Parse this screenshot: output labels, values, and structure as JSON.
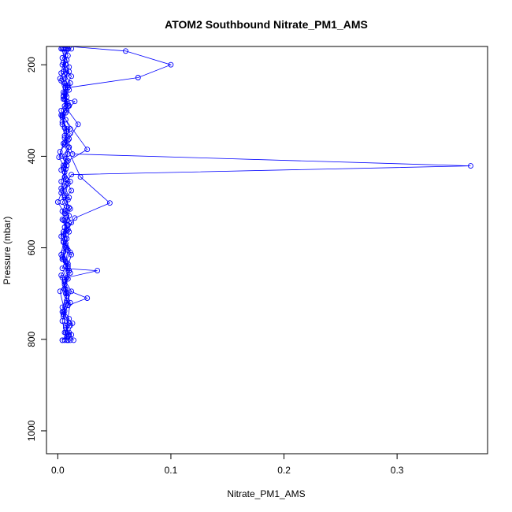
{
  "chart_data": {
    "type": "line",
    "title": "ATOM2 Southbound Nitrate_PM1_AMS",
    "xlabel": "Nitrate_PM1_AMS",
    "ylabel": "Pressure (mbar)",
    "xlim": [
      -0.01,
      0.38
    ],
    "ylim": [
      1050,
      160
    ],
    "y_reversed": true,
    "x_ticks": [
      0.0,
      0.1,
      0.2,
      0.3
    ],
    "x_tick_labels": [
      "0.0",
      "0.1",
      "0.2",
      "0.3"
    ],
    "y_ticks": [
      200,
      400,
      600,
      800,
      1000
    ],
    "y_tick_labels": [
      "200",
      "400",
      "600",
      "800",
      "1000"
    ],
    "grid": false,
    "legend": "none",
    "series_color": "#0000ff",
    "marker": "open-circle",
    "highlights": [
      {
        "x": 0.1,
        "y": 200
      },
      {
        "x": 0.071,
        "y": 228
      },
      {
        "x": 0.365,
        "y": 421
      },
      {
        "x": 0.046,
        "y": 502
      },
      {
        "x": 0.035,
        "y": 650
      },
      {
        "x": 0.026,
        "y": 726
      },
      {
        "x": 0.026,
        "y": 385
      },
      {
        "x": 0.02,
        "y": 802
      }
    ],
    "series": [
      {
        "x": [
          0.012,
          0.004,
          0.007,
          0.01,
          0.006,
          0.009,
          0.005,
          0.008,
          0.003,
          0.007,
          0.011,
          0.006,
          0.01,
          0.004,
          0.008,
          0.006,
          0.003,
          0.009,
          0.007,
          0.012,
          0.005,
          0.008,
          0.004,
          0.01,
          0.006,
          0.007,
          0.009,
          0.005,
          0.011,
          0.006,
          0.008,
          0.004
        ],
        "y": [
          165,
          185,
          200,
          215,
          230,
          245,
          260,
          280,
          300,
          320,
          340,
          360,
          380,
          400,
          420,
          445,
          470,
          495,
          520,
          545,
          570,
          600,
          625,
          650,
          675,
          700,
          725,
          750,
          770,
          785,
          795,
          802
        ]
      },
      {
        "x": [
          0.007,
          0.01,
          0.06,
          0.1,
          0.071,
          0.009,
          0.005,
          0.008,
          0.004,
          0.006,
          0.01,
          0.007,
          0.003,
          0.009,
          0.006,
          0.011,
          0.008,
          0.005,
          0.007,
          0.012,
          0.009,
          0.004,
          0.006,
          0.008,
          0.005,
          0.01,
          0.007,
          0.009
        ],
        "y": [
          165,
          160,
          170,
          200,
          228,
          250,
          275,
          300,
          330,
          355,
          380,
          405,
          430,
          460,
          490,
          515,
          540,
          565,
          590,
          615,
          640,
          665,
          690,
          715,
          740,
          765,
          785,
          802
        ]
      },
      {
        "x": [
          0.003,
          0.008,
          0.005,
          0.011,
          0.007,
          0.006,
          0.018,
          0.009,
          0.013,
          0.365,
          0.012,
          0.006,
          0.01,
          0.004,
          0.008,
          0.005,
          0.009,
          0.007,
          0.011,
          0.006,
          0.008,
          0.004,
          0.01,
          0.007,
          0.012,
          0.009
        ],
        "y": [
          165,
          190,
          215,
          240,
          265,
          290,
          330,
          365,
          395,
          421,
          440,
          465,
          490,
          520,
          550,
          575,
          605,
          630,
          655,
          680,
          705,
          730,
          755,
          775,
          790,
          802
        ]
      },
      {
        "x": [
          0.006,
          0.009,
          0.004,
          0.012,
          0.007,
          0.005,
          0.01,
          0.003,
          0.008,
          0.006,
          0.02,
          0.046,
          0.015,
          0.009,
          0.005,
          0.011,
          0.007,
          0.004,
          0.035,
          0.008,
          0.006,
          0.026,
          0.009,
          0.005,
          0.013,
          0.01,
          0.014
        ],
        "y": [
          165,
          180,
          200,
          225,
          250,
          270,
          290,
          310,
          340,
          370,
          445,
          502,
          535,
          560,
          585,
          610,
          630,
          645,
          650,
          665,
          690,
          710,
          726,
          745,
          765,
          785,
          802
        ]
      },
      {
        "x": [
          0.009,
          0.005,
          0.008,
          0.003,
          0.01,
          0.006,
          0.015,
          0.007,
          0.004,
          0.011,
          0.006,
          0.009,
          0.005,
          0.007,
          0.012,
          0.004,
          0.01,
          0.006,
          0.008,
          0.005,
          0.009,
          0.003,
          0.007,
          0.011,
          0.006
        ],
        "y": [
          165,
          195,
          220,
          235,
          255,
          275,
          280,
          305,
          325,
          350,
          375,
          395,
          420,
          450,
          475,
          500,
          530,
          555,
          580,
          610,
          635,
          660,
          690,
          720,
          802
        ]
      },
      {
        "x": [
          0.005,
          0.01,
          0.006,
          0.008,
          0.004,
          0.026,
          0.009,
          0.006,
          0.011,
          0.003,
          0.008,
          0.005,
          0.01,
          0.007,
          0.004,
          0.009,
          0.006,
          0.012,
          0.008,
          0.005,
          0.007,
          0.01,
          0.004
        ],
        "y": [
          165,
          205,
          240,
          270,
          310,
          385,
          410,
          435,
          455,
          480,
          510,
          540,
          565,
          595,
          620,
          645,
          670,
          695,
          720,
          745,
          770,
          790,
          802
        ]
      },
      {
        "x": [
          0.008,
          0.003,
          0.007,
          0.005,
          0.009,
          0.004,
          0.006,
          0.01,
          0.002,
          0.008,
          0.005,
          0.007,
          0.004,
          0.0,
          0.006,
          0.009,
          0.003,
          0.007,
          0.005,
          0.01,
          0.006,
          0.008,
          0.004,
          0.007,
          0.011
        ],
        "y": [
          165,
          218,
          245,
          268,
          290,
          312,
          338,
          362,
          390,
          412,
          425,
          450,
          475,
          500,
          525,
          550,
          575,
          600,
          625,
          650,
          675,
          700,
          740,
          770,
          802
        ]
      },
      {
        "x": [
          0.004,
          0.007,
          0.002,
          0.006,
          0.009,
          0.004,
          0.008,
          0.005,
          0.001,
          0.007,
          0.003,
          0.006,
          0.01,
          0.004,
          0.008,
          0.005,
          0.003,
          0.007,
          0.009,
          0.002,
          0.006,
          0.004,
          0.008
        ],
        "y": [
          165,
          210,
          230,
          262,
          285,
          315,
          345,
          372,
          402,
          428,
          455,
          485,
          512,
          538,
          562,
          588,
          615,
          640,
          668,
          695,
          738,
          760,
          802
        ]
      }
    ]
  }
}
